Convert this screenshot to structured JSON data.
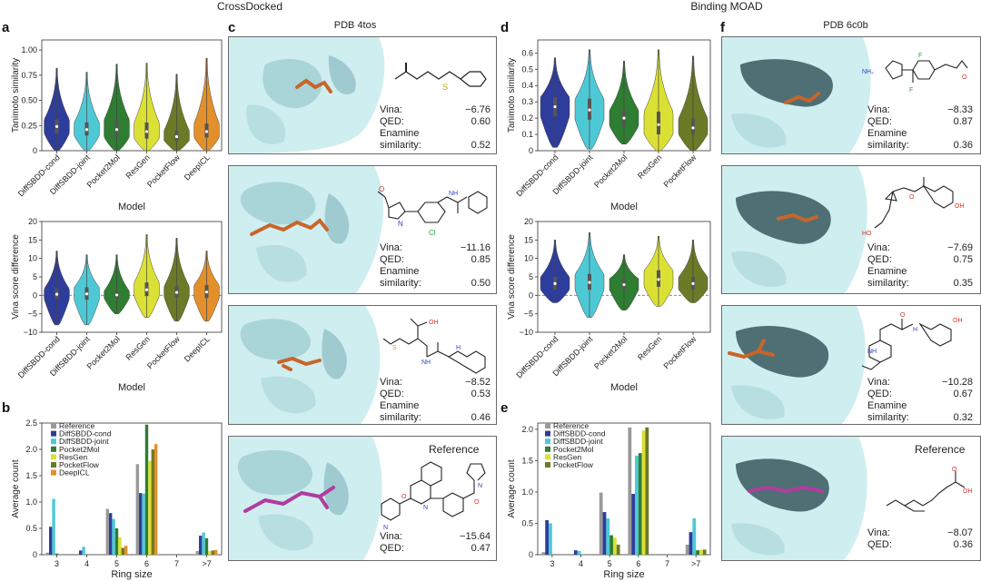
{
  "headers": {
    "left": "CrossDocked",
    "right": "Binding MOAD"
  },
  "panel_letters": {
    "a": "a",
    "b": "b",
    "c": "c",
    "d": "d",
    "e": "e",
    "f": "f"
  },
  "pdb_titles": {
    "c": "PDB 4tos",
    "f": "PDB 6c0b"
  },
  "colors": {
    "DiffSBDD-cond": "#2e3d9b",
    "DiffSBDD-joint": "#4dc9d6",
    "Pocket2Mol": "#2e7d32",
    "ResGen": "#dbe034",
    "PocketFlow": "#6b7a26",
    "DeepICL": "#e3902b",
    "Reference": "#999999",
    "surface": "#cfeef0",
    "ligand_orange": "#c8652a",
    "ligand_magenta": "#b03ca0"
  },
  "mol_labels": {
    "o": "O",
    "oh": "OH",
    "n": "N",
    "nh": "NH",
    "nh2": "NH₂",
    "h": "H",
    "f": "F",
    "s": "S",
    "hn": "HN",
    "ho": "HO",
    "cl": "Cl"
  },
  "metric_labels": {
    "vina": "Vina:",
    "qed": "QED:",
    "enamine": "Enamine",
    "similarity": "similarity:"
  },
  "cards_c": [
    {
      "vina": "−6.76",
      "qed": "0.60",
      "sim": "0.52"
    },
    {
      "vina": "−11.16",
      "qed": "0.85",
      "sim": "0.50"
    },
    {
      "vina": "−8.52",
      "qed": "0.53",
      "sim": "0.46"
    },
    {
      "ref": "Reference",
      "vina": "−15.64",
      "qed": "0.47"
    }
  ],
  "cards_f": [
    {
      "vina": "−8.33",
      "qed": "0.87",
      "sim": "0.36"
    },
    {
      "vina": "−7.69",
      "qed": "0.75",
      "sim": "0.35"
    },
    {
      "vina": "−10.28",
      "qed": "0.67",
      "sim": "0.32"
    },
    {
      "ref": "Reference",
      "vina": "−8.07",
      "qed": "0.36"
    }
  ],
  "chart_data": [
    {
      "id": "a-top",
      "type": "violin",
      "xlabel": "Model",
      "ylabel": "Tanimoto similarity",
      "ylim": [
        0,
        1.1
      ],
      "yticks": [
        0,
        0.25,
        0.5,
        0.75,
        1.0
      ],
      "ytick_labels": [
        "0",
        "0.25",
        "0.50",
        "0.75",
        "1.00"
      ],
      "categories": [
        "DiffSBDD-cond",
        "DiffSBDD-joint",
        "Pocket2Mol",
        "ResGen",
        "PocketFlow",
        "DeepICL"
      ],
      "median": [
        0.24,
        0.21,
        0.21,
        0.19,
        0.14,
        0.19
      ],
      "q1": [
        0.17,
        0.15,
        0.13,
        0.12,
        0.1,
        0.13
      ],
      "q3": [
        0.31,
        0.28,
        0.31,
        0.28,
        0.2,
        0.27
      ],
      "min": [
        0.0,
        0.0,
        0.0,
        0.0,
        0.0,
        0.0
      ],
      "max": [
        0.82,
        0.78,
        0.86,
        0.87,
        0.76,
        0.92
      ]
    },
    {
      "id": "a-bottom",
      "type": "violin",
      "xlabel": "Model",
      "ylabel": "Vina score difference",
      "ylim": [
        -10,
        20
      ],
      "yticks": [
        -10,
        -5,
        0,
        5,
        10,
        15,
        20
      ],
      "ytick_labels": [
        "−10",
        "−5",
        "0",
        "5",
        "10",
        "15",
        "20"
      ],
      "reference_line": 0,
      "categories": [
        "DiffSBDD-cond",
        "DiffSBDD-joint",
        "Pocket2Mol",
        "ResGen",
        "PocketFlow",
        "DeepICL"
      ],
      "median": [
        0.3,
        0.4,
        0.1,
        1.5,
        0.8,
        0.9
      ],
      "q1": [
        -1.0,
        -1.2,
        -0.8,
        -0.2,
        -0.5,
        -0.7
      ],
      "q3": [
        1.8,
        2.2,
        1.2,
        3.5,
        2.5,
        2.8
      ],
      "min": [
        -8.0,
        -8.0,
        -5.0,
        -6.0,
        -7.0,
        -7.0
      ],
      "max": [
        12.0,
        11.0,
        11.0,
        16.5,
        15.5,
        12.0
      ]
    },
    {
      "id": "b",
      "type": "bar",
      "xlabel": "Ring size",
      "ylabel": "Average count",
      "ylim": [
        0,
        2.5
      ],
      "yticks": [
        0,
        0.5,
        1.0,
        1.5,
        2.0,
        2.5
      ],
      "ytick_labels": [
        "0",
        "0.5",
        "1.0",
        "1.5",
        "2.0",
        "2.5"
      ],
      "categories": [
        "3",
        "4",
        "5",
        "6",
        "7",
        ">7"
      ],
      "legend": "top-left",
      "series": [
        {
          "name": "Reference",
          "values": [
            0.04,
            0.0,
            0.87,
            1.72,
            0.0,
            0.07
          ]
        },
        {
          "name": "DiffSBDD-cond",
          "values": [
            0.53,
            0.08,
            0.79,
            1.17,
            0.0,
            0.36
          ]
        },
        {
          "name": "DiffSBDD-joint",
          "values": [
            1.06,
            0.15,
            0.68,
            1.16,
            0.0,
            0.42
          ]
        },
        {
          "name": "Pocket2Mol",
          "values": [
            0.02,
            0.0,
            0.5,
            2.47,
            0.0,
            0.31
          ]
        },
        {
          "name": "ResGen",
          "values": [
            0.0,
            0.0,
            0.33,
            1.78,
            0.0,
            0.07
          ]
        },
        {
          "name": "PocketFlow",
          "values": [
            0.0,
            0.0,
            0.13,
            2.0,
            0.0,
            0.08
          ]
        },
        {
          "name": "DeepICL",
          "values": [
            0.0,
            0.0,
            0.17,
            2.1,
            0.0,
            0.09
          ]
        }
      ]
    },
    {
      "id": "d-top",
      "type": "violin",
      "xlabel": "Model",
      "ylabel": "Tanimoto similarity",
      "ylim": [
        0,
        0.68
      ],
      "yticks": [
        0,
        0.1,
        0.2,
        0.3,
        0.4,
        0.5,
        0.6
      ],
      "ytick_labels": [
        "0",
        "0.1",
        "0.2",
        "0.3",
        "0.4",
        "0.5",
        "0.6"
      ],
      "categories": [
        "DiffSBDD-cond",
        "DiffSBDD-joint",
        "Pocket2Mol",
        "ResGen",
        "PocketFlow"
      ],
      "median": [
        0.27,
        0.25,
        0.2,
        0.16,
        0.14
      ],
      "q1": [
        0.21,
        0.19,
        0.15,
        0.1,
        0.1
      ],
      "q3": [
        0.33,
        0.32,
        0.25,
        0.24,
        0.2
      ],
      "min": [
        0.02,
        0.01,
        0.04,
        0.0,
        0.0
      ],
      "max": [
        0.57,
        0.62,
        0.55,
        0.62,
        0.58
      ]
    },
    {
      "id": "d-bottom",
      "type": "violin",
      "xlabel": "Model",
      "ylabel": "Vina score difference",
      "ylim": [
        -10,
        20
      ],
      "yticks": [
        -10,
        -5,
        0,
        5,
        10,
        15,
        20
      ],
      "ytick_labels": [
        "−10",
        "−5",
        "0",
        "5",
        "10",
        "15",
        "20"
      ],
      "reference_line": 0,
      "categories": [
        "DiffSBDD-cond",
        "DiffSBDD-joint",
        "Pocket2Mol",
        "ResGen",
        "PocketFlow"
      ],
      "median": [
        3.2,
        3.5,
        2.9,
        4.3,
        3.2
      ],
      "q1": [
        1.5,
        1.5,
        1.5,
        2.3,
        1.6
      ],
      "q3": [
        5.0,
        5.8,
        4.5,
        6.8,
        5.0
      ],
      "min": [
        -2.0,
        -6.0,
        -4.0,
        -3.0,
        -2.0
      ],
      "max": [
        15.0,
        17.0,
        11.0,
        16.0,
        15.0
      ]
    },
    {
      "id": "e",
      "type": "bar",
      "xlabel": "Ring size",
      "ylabel": "Average count",
      "ylim": [
        0,
        2.1
      ],
      "yticks": [
        0,
        0.5,
        1.0,
        1.5,
        2.0
      ],
      "ytick_labels": [
        "0",
        "0.5",
        "1.0",
        "1.5",
        "2.0"
      ],
      "categories": [
        "3",
        "4",
        "5",
        "6",
        "7",
        ">7"
      ],
      "legend": "top-left",
      "series": [
        {
          "name": "Reference",
          "values": [
            0.04,
            0.0,
            0.99,
            2.03,
            0.0,
            0.16
          ]
        },
        {
          "name": "DiffSBDD-cond",
          "values": [
            0.55,
            0.07,
            0.68,
            0.97,
            0.0,
            0.36
          ]
        },
        {
          "name": "DiffSBDD-joint",
          "values": [
            0.5,
            0.06,
            0.58,
            1.58,
            0.0,
            0.58
          ]
        },
        {
          "name": "Pocket2Mol",
          "values": [
            0.0,
            0.0,
            0.31,
            1.62,
            0.0,
            0.07
          ]
        },
        {
          "name": "ResGen",
          "values": [
            0.0,
            0.0,
            0.27,
            1.98,
            0.0,
            0.08
          ]
        },
        {
          "name": "PocketFlow",
          "values": [
            0.0,
            0.0,
            0.16,
            2.03,
            0.0,
            0.08
          ]
        }
      ]
    }
  ]
}
